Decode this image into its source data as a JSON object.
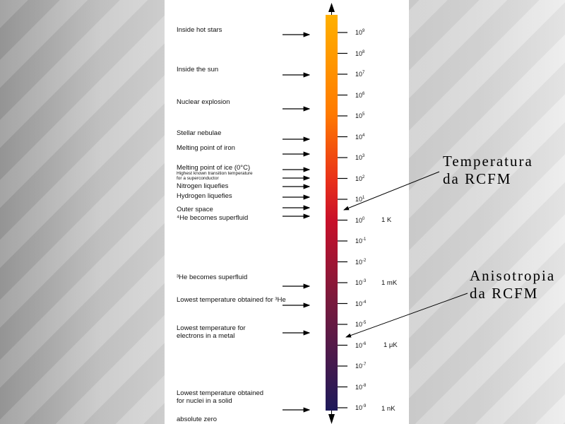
{
  "labels": [
    {
      "text": "Inside hot stars"
    },
    {
      "text": "Inside the sun"
    },
    {
      "text": "Nuclear explosion"
    },
    {
      "text": "Stellar nebulae"
    },
    {
      "text": "Melting point of iron"
    },
    {
      "text": "Melting point of ice (0°C)"
    },
    {
      "text": "Highest known transition temperature\nfor a superconductor"
    },
    {
      "text": "Nitrogen liquefies"
    },
    {
      "text": "Hydrogen liquefies"
    },
    {
      "text": "Outer space"
    },
    {
      "text": "⁴He becomes superfluid"
    },
    {
      "text": "³He becomes superfluid"
    },
    {
      "text": "Lowest temperature obtained for ³He"
    },
    {
      "text": "Lowest temperature for\nelectrons in a metal"
    },
    {
      "text": "Lowest temperature obtained\nfor nuclei in a solid"
    },
    {
      "text": "absolute zero"
    }
  ],
  "scale": {
    "base": "10",
    "exponents": [
      "9",
      "8",
      "7",
      "6",
      "5",
      "4",
      "3",
      "2",
      "1",
      "0",
      "-1",
      "-2",
      "-3",
      "-4",
      "-5",
      "-6",
      "-7",
      "-8",
      "-9"
    ],
    "units": [
      {
        "exponent": "0",
        "text": "1 K"
      },
      {
        "exponent": "-3",
        "text": "1 mK"
      },
      {
        "exponent": "-6",
        "text": "1 μK"
      },
      {
        "exponent": "-9",
        "text": "1 nK"
      }
    ],
    "colors": {
      "top": "#ffb000",
      "mid1": "#ff7a00",
      "mid2": "#e8301a",
      "mid3": "#c8102a",
      "mid4": "#7a1a3c",
      "bottom": "#1e1a5a"
    }
  },
  "callouts": [
    {
      "text": "Temperatura\nda RCFM"
    },
    {
      "text": "Anisotropia\nda RCFM"
    }
  ]
}
